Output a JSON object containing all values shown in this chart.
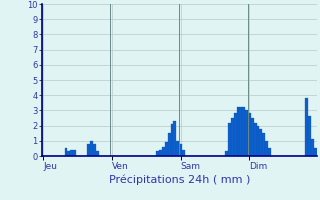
{
  "title": "Précipitations 24h ( mm )",
  "background_color": "#e0f4f4",
  "plot_bg_color": "#e0f4f4",
  "bar_color": "#1060cc",
  "bar_edge_color": "#0050bb",
  "ylim": [
    0,
    10
  ],
  "yticks": [
    0,
    1,
    2,
    3,
    4,
    5,
    6,
    7,
    8,
    9,
    10
  ],
  "grid_color": "#b8c8c8",
  "tick_label_color": "#3333aa",
  "xlabel_color": "#3333aa",
  "day_labels": [
    "Jeu",
    "Ven",
    "Sam",
    "Dim"
  ],
  "n_bars": 96,
  "values": [
    0,
    0,
    0,
    0,
    0,
    0,
    0,
    0,
    0.5,
    0.3,
    0.4,
    0.4,
    0,
    0,
    0,
    0,
    0.8,
    1.0,
    0.8,
    0.3,
    0,
    0,
    0,
    0,
    0,
    0,
    0,
    0,
    0,
    0,
    0,
    0,
    0,
    0,
    0,
    0,
    0,
    0,
    0,
    0,
    0.3,
    0.4,
    0.6,
    0.9,
    1.5,
    2.1,
    2.3,
    1.0,
    0.8,
    0.4,
    0,
    0,
    0,
    0,
    0,
    0,
    0,
    0,
    0,
    0,
    0,
    0,
    0,
    0,
    0.3,
    2.2,
    2.5,
    2.8,
    3.2,
    3.2,
    3.2,
    3.0,
    2.8,
    2.5,
    2.2,
    2.0,
    1.8,
    1.5,
    1.0,
    0.5,
    0,
    0,
    0,
    0,
    0,
    0,
    0,
    0,
    0,
    0,
    0,
    0,
    3.8,
    2.6,
    1.1,
    0.5
  ]
}
